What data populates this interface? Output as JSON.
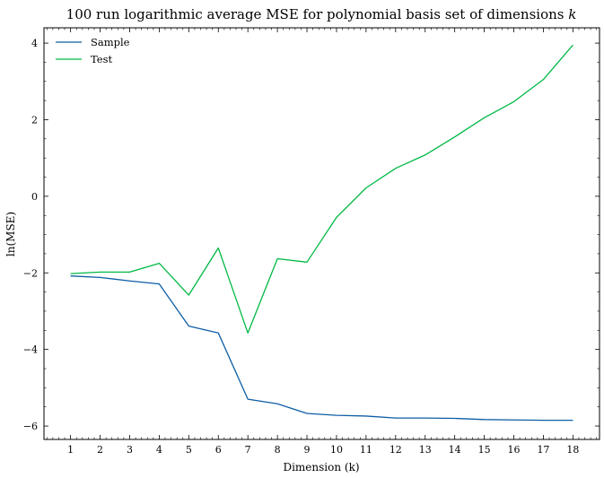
{
  "chart_data": {
    "type": "line",
    "title": "100 run logarithmic average MSE for polynomial basis set of dimensions",
    "title_var": "k",
    "xlabel": "Dimension (k)",
    "ylabel": "ln(MSE)",
    "x": [
      1,
      2,
      3,
      4,
      5,
      6,
      7,
      8,
      9,
      10,
      11,
      12,
      13,
      14,
      15,
      16,
      17,
      18
    ],
    "x_ticks": [
      "1",
      "2",
      "3",
      "4",
      "5",
      "6",
      "7",
      "8",
      "9",
      "10",
      "11",
      "12",
      "13",
      "14",
      "15",
      "16",
      "17",
      "18"
    ],
    "y_ticks": [
      "4",
      "2",
      "0",
      "−2",
      "−4",
      "−6"
    ],
    "y_tick_values": [
      4,
      2,
      0,
      -2,
      -4,
      -6
    ],
    "xlim": [
      0.1,
      18.9
    ],
    "ylim": [
      -6.35,
      4.4
    ],
    "grid": false,
    "legend_position": "top-left",
    "series": [
      {
        "name": "Sample",
        "color": "#0c5da5",
        "values": [
          -2.08,
          -2.12,
          -2.21,
          -2.29,
          -3.39,
          -3.57,
          -5.3,
          -5.42,
          -5.67,
          -5.72,
          -5.74,
          -5.79,
          -5.79,
          -5.8,
          -5.83,
          -5.84,
          -5.85,
          -5.85
        ]
      },
      {
        "name": "Test",
        "color": "#00b945",
        "values": [
          -2.02,
          -1.98,
          -1.98,
          -1.75,
          -2.58,
          -1.35,
          -3.57,
          -1.63,
          -1.72,
          -0.55,
          0.22,
          0.73,
          1.08,
          1.55,
          2.05,
          2.47,
          3.05,
          3.95
        ]
      }
    ]
  }
}
